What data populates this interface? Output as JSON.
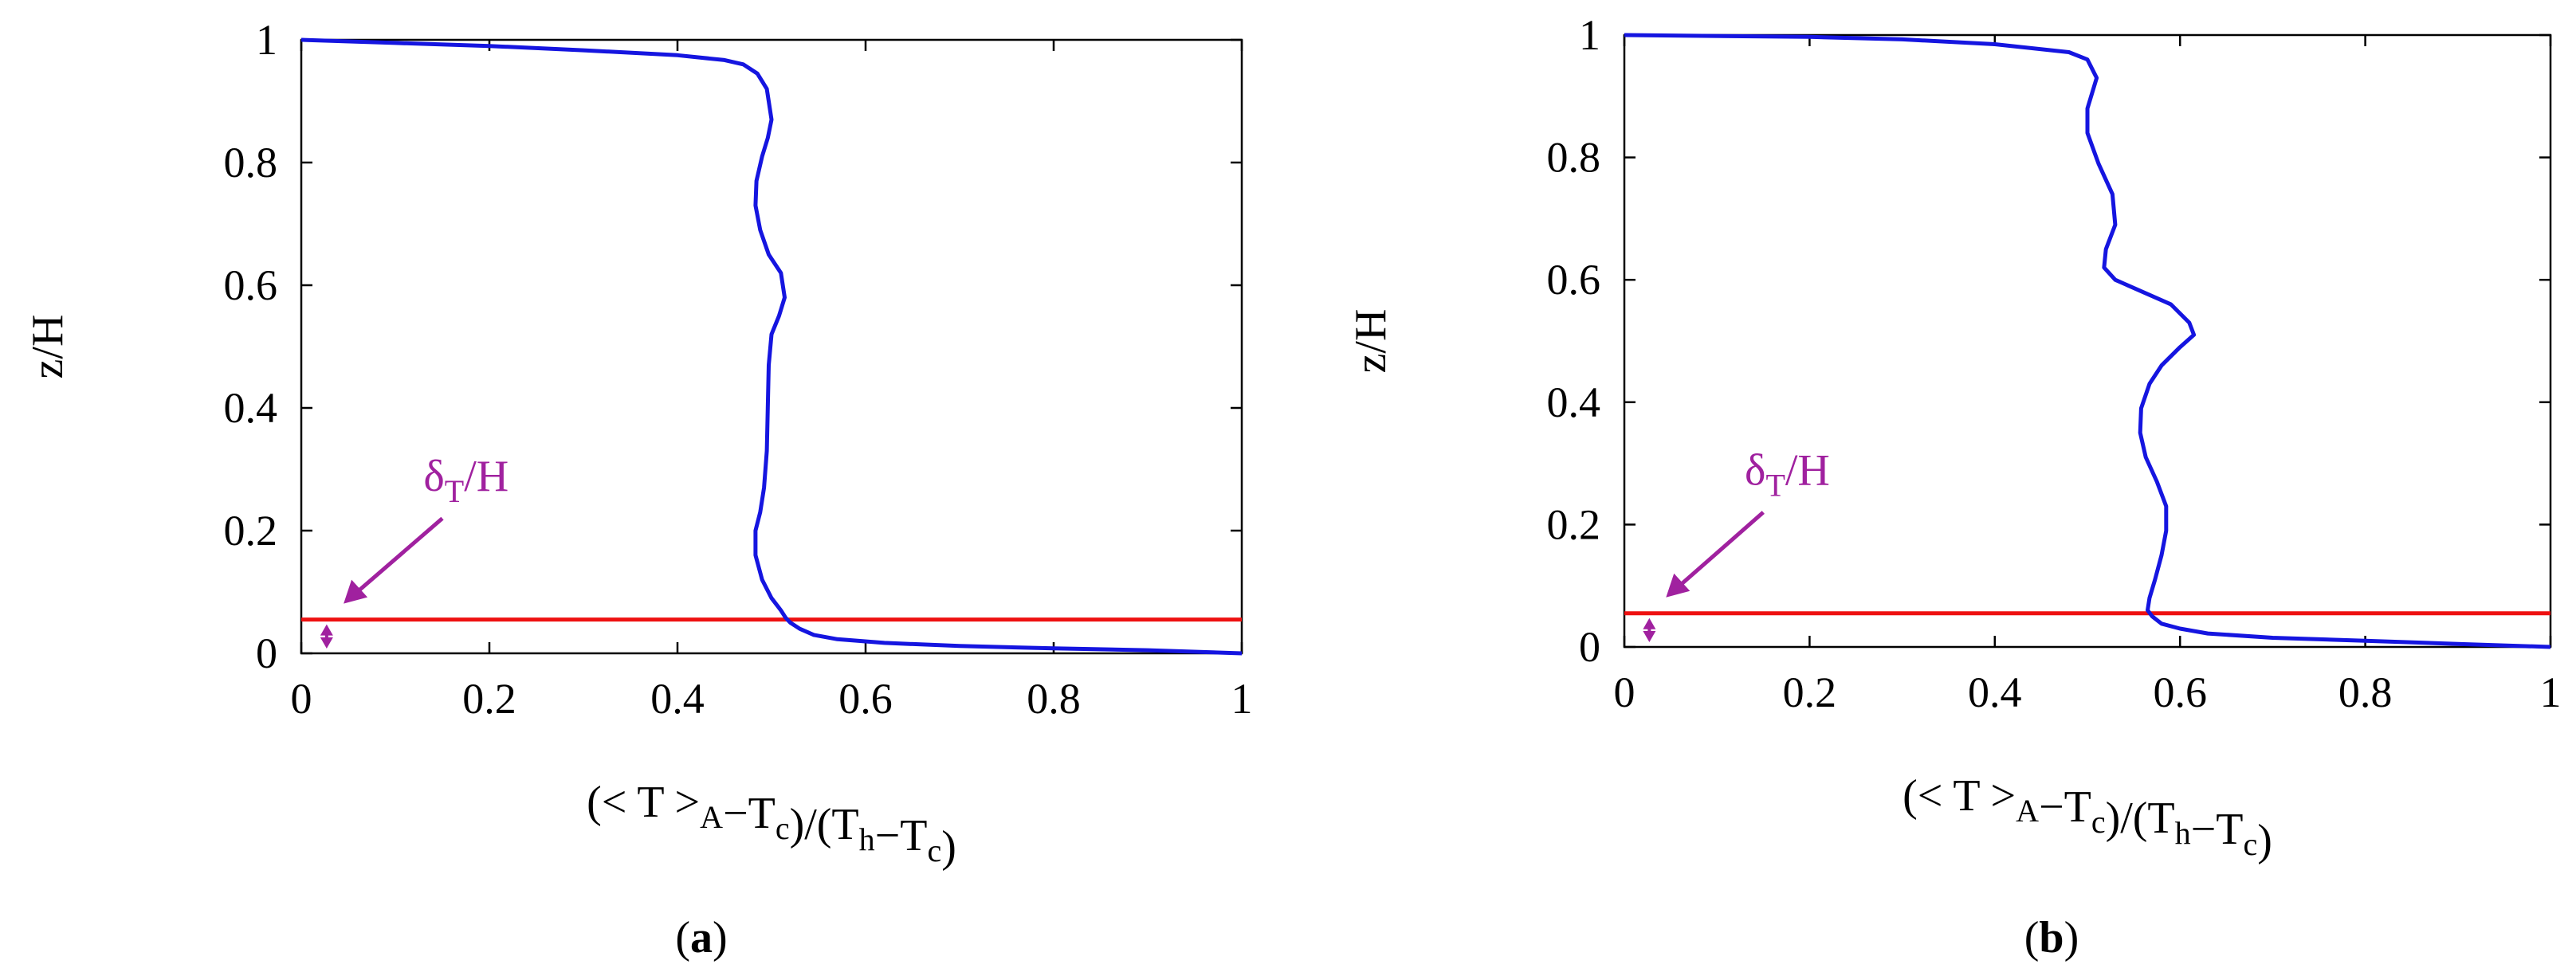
{
  "colors": {
    "profile": "#1515e0",
    "boundary_layer": "#ee1111",
    "annotation": "#a0219f",
    "axes": "#000000"
  },
  "chart_data": [
    {
      "type": "line",
      "panel_label": "a",
      "xlabel": "(< T >A−Tc)/(Th−Tc)",
      "ylabel": "z/H",
      "xlim": [
        0,
        1
      ],
      "ylim": [
        0,
        1
      ],
      "xticks": [
        "0",
        "0.2",
        "0.4",
        "0.6",
        "0.8",
        "1"
      ],
      "yticks": [
        "0",
        "0.2",
        "0.4",
        "0.6",
        "0.8",
        "1"
      ],
      "grid": false,
      "boundary_layer_z": 0.055,
      "annotation": "δT/H",
      "series": [
        {
          "x": [
            1.0,
            0.9,
            0.8,
            0.7,
            0.62,
            0.57,
            0.545,
            0.53,
            0.52,
            0.515,
            0.51,
            0.5,
            0.49,
            0.483,
            0.483,
            0.488,
            0.492,
            0.495,
            0.496,
            0.497,
            0.5,
            0.508,
            0.514,
            0.51,
            0.497,
            0.488,
            0.483,
            0.484,
            0.49,
            0.496,
            0.5,
            0.495,
            0.485,
            0.47,
            0.45,
            0.4,
            0.3,
            0.2,
            0.1,
            0.0
          ],
          "y": [
            0.0,
            0.005,
            0.008,
            0.012,
            0.017,
            0.023,
            0.03,
            0.04,
            0.05,
            0.058,
            0.07,
            0.09,
            0.12,
            0.16,
            0.2,
            0.23,
            0.27,
            0.33,
            0.4,
            0.47,
            0.52,
            0.55,
            0.58,
            0.62,
            0.65,
            0.69,
            0.73,
            0.77,
            0.81,
            0.84,
            0.87,
            0.92,
            0.945,
            0.96,
            0.967,
            0.975,
            0.983,
            0.99,
            0.995,
            1.0
          ]
        }
      ]
    },
    {
      "type": "line",
      "panel_label": "b",
      "xlabel": "(< T >A−Tc)/(Th−Tc)",
      "ylabel": "z/H",
      "xlim": [
        0,
        1
      ],
      "ylim": [
        0,
        1
      ],
      "xticks": [
        "0",
        "0.2",
        "0.4",
        "0.6",
        "0.8",
        "1"
      ],
      "yticks": [
        "0",
        "0.2",
        "0.4",
        "0.6",
        "0.8",
        "1"
      ],
      "grid": false,
      "boundary_layer_z": 0.055,
      "annotation": "δT/H",
      "series": [
        {
          "x": [
            1.0,
            0.9,
            0.8,
            0.7,
            0.63,
            0.6,
            0.58,
            0.57,
            0.565,
            0.567,
            0.573,
            0.58,
            0.585,
            0.585,
            0.575,
            0.563,
            0.557,
            0.558,
            0.567,
            0.58,
            0.6,
            0.615,
            0.61,
            0.59,
            0.56,
            0.53,
            0.518,
            0.52,
            0.53,
            0.527,
            0.512,
            0.5,
            0.5,
            0.51,
            0.5,
            0.48,
            0.4,
            0.3,
            0.2,
            0.0
          ],
          "y": [
            0.0,
            0.005,
            0.01,
            0.015,
            0.022,
            0.03,
            0.038,
            0.05,
            0.06,
            0.08,
            0.11,
            0.15,
            0.19,
            0.23,
            0.27,
            0.31,
            0.35,
            0.39,
            0.43,
            0.46,
            0.49,
            0.51,
            0.53,
            0.56,
            0.58,
            0.6,
            0.62,
            0.65,
            0.69,
            0.74,
            0.79,
            0.84,
            0.88,
            0.93,
            0.96,
            0.972,
            0.985,
            0.993,
            0.997,
            1.0
          ]
        }
      ]
    }
  ]
}
